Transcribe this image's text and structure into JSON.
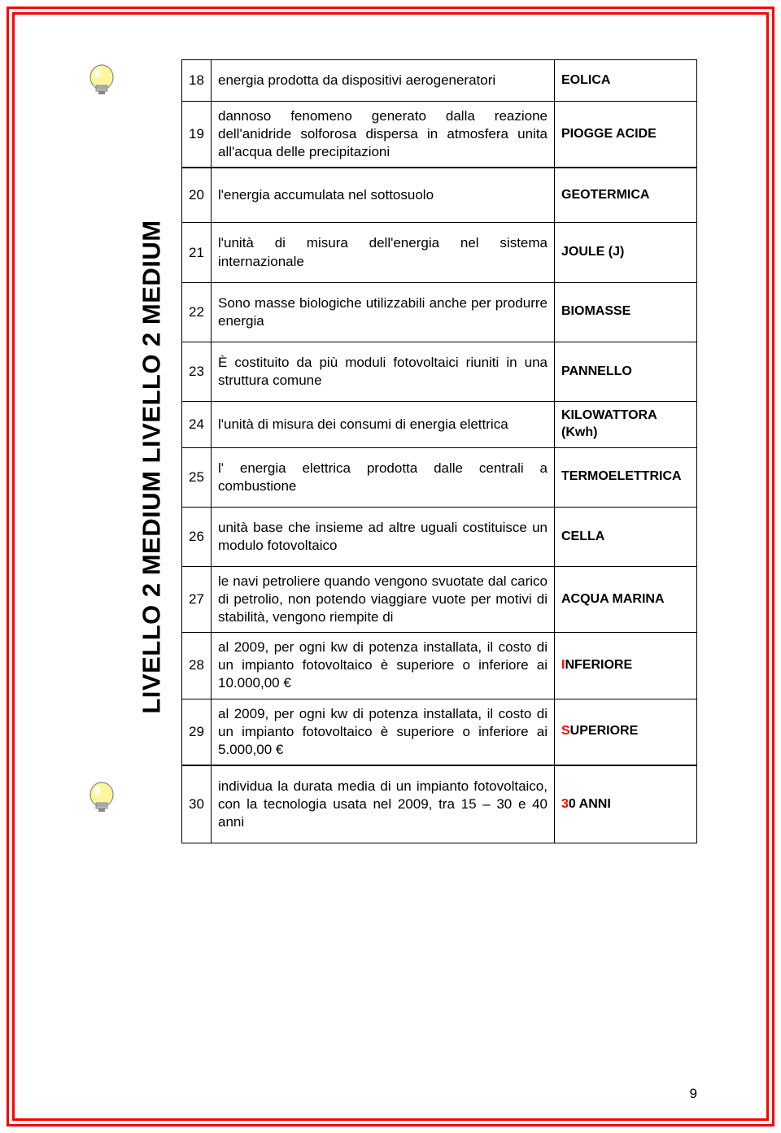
{
  "page_number": "9",
  "vertical_label": "LIVELLO 2 MEDIUM   LIVELLO 2 MEDIUM",
  "rows": [
    {
      "num": "18",
      "desc": "energia prodotta da dispositivi aerogeneratori",
      "answer": "EOLICA",
      "highlight": false
    },
    {
      "num": "19",
      "desc": "dannoso fenomeno generato dalla reazione dell'anidride solforosa dispersa in atmosfera unita all'acqua delle precipitazioni",
      "answer": "PIOGGE ACIDE",
      "highlight": false
    },
    {
      "num": "20",
      "desc": "l'energia accumulata nel sottosuolo",
      "answer": "GEOTERMICA",
      "highlight": false
    },
    {
      "num": "21",
      "desc": "l'unità di misura dell'energia nel sistema internazionale",
      "answer": "JOULE (J)",
      "highlight": false
    },
    {
      "num": "22",
      "desc": "Sono masse biologiche utilizzabili anche per produrre energia",
      "answer": "BIOMASSE",
      "highlight": false
    },
    {
      "num": "23",
      "desc": "È costituito da più moduli fotovoltaici riuniti in una struttura comune",
      "answer": "PANNELLO",
      "highlight": false
    },
    {
      "num": "24",
      "desc": "l'unità di misura dei consumi di energia elettrica",
      "answer": "KILOWATTORA (Kwh)",
      "highlight": false
    },
    {
      "num": "25",
      "desc": "l' energia elettrica prodotta dalle centrali a combustione",
      "answer": "TERMOELETTRICA",
      "highlight": false
    },
    {
      "num": "26",
      "desc": "unità base che insieme ad altre uguali costituisce un modulo fotovoltaico",
      "answer": "CELLA",
      "highlight": false
    },
    {
      "num": "27",
      "desc": "le navi petroliere quando vengono svuotate dal carico di petrolio, non potendo viaggiare vuote per motivi di stabilità, vengono riempite di",
      "answer": "ACQUA MARINA",
      "highlight": false
    },
    {
      "num": "28",
      "desc": "al 2009, per ogni kw di potenza installata, il costo di un impianto fotovoltaico è superiore o inferiore ai 10.000,00 €",
      "answer": "INFERIORE",
      "highlight": true
    },
    {
      "num": "29",
      "desc": "al 2009, per ogni kw di potenza installata, il costo di un impianto fotovoltaico è superiore o inferiore ai 5.000,00 €",
      "answer": "SUPERIORE",
      "highlight": true
    },
    {
      "num": "30",
      "desc": "individua la durata media di un impianto fotovoltaico, con la tecnologia usata nel 2009, tra  15 – 30  e 40 anni",
      "answer": "30 ANNI",
      "highlight": true
    }
  ]
}
